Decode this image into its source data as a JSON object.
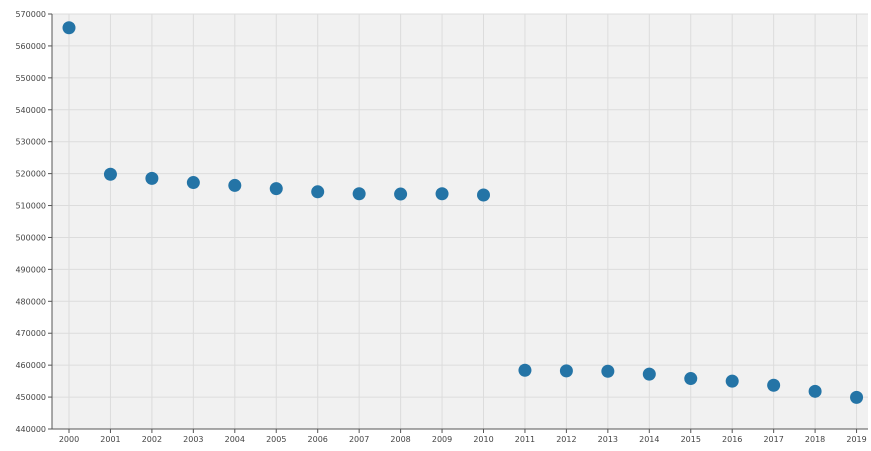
{
  "chart_data": {
    "type": "scatter",
    "title": "",
    "xlabel": "",
    "ylabel": "",
    "x": [
      "2000",
      "2001",
      "2002",
      "2003",
      "2004",
      "2005",
      "2006",
      "2007",
      "2008",
      "2009",
      "2010",
      "2011",
      "2012",
      "2013",
      "2014",
      "2015",
      "2016",
      "2017",
      "2018",
      "2019"
    ],
    "series": [
      {
        "values": [
          565700,
          519800,
          518500,
          517200,
          516300,
          515300,
          514300,
          513700,
          513600,
          513700,
          513300,
          458400,
          458200,
          458100,
          457200,
          455800,
          455000,
          453700,
          451800,
          449900
        ]
      }
    ],
    "ylim": [
      440000,
      570000
    ],
    "yticks": [
      "440000",
      "450000",
      "460000",
      "470000",
      "480000",
      "490000",
      "500000",
      "510000",
      "520000",
      "530000",
      "540000",
      "550000",
      "560000",
      "570000"
    ],
    "grid": true,
    "colors": {
      "marker": "#2474a6",
      "plot_background": "#f1f1f1",
      "grid": "#dcdcdc",
      "axis": "#555555"
    }
  }
}
